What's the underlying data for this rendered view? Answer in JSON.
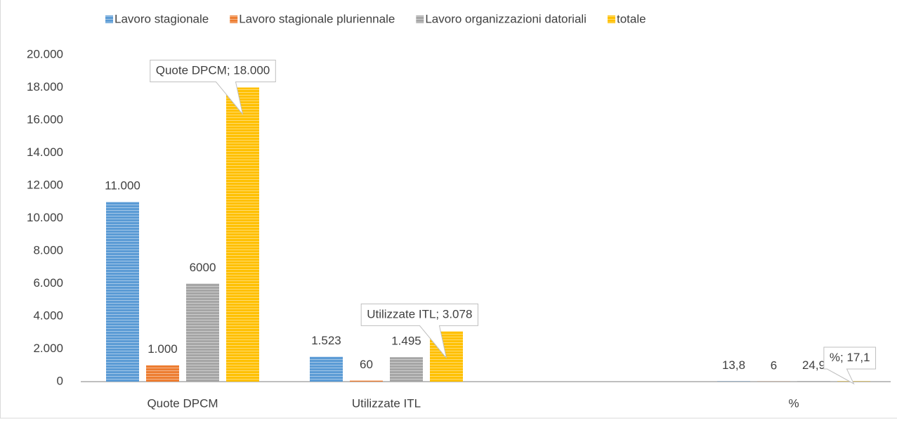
{
  "chart_data": {
    "type": "bar",
    "categories": [
      "Quote DPCM",
      "Utilizzate ITL",
      null,
      "%"
    ],
    "series": [
      {
        "name": "Lavoro stagionale",
        "color": "#5b9bd5",
        "values": [
          11000,
          1523,
          null,
          13.8
        ],
        "value_labels": [
          "11.000",
          "1.523",
          null,
          "13,8"
        ]
      },
      {
        "name": "Lavoro stagionale pluriennale",
        "color": "#ed7d31",
        "values": [
          1000,
          60,
          null,
          6
        ],
        "value_labels": [
          "1.000",
          "60",
          null,
          "6"
        ]
      },
      {
        "name": "Lavoro organizzazioni datoriali",
        "color": "#a5a5a5",
        "values": [
          6000,
          1495,
          null,
          24.9
        ],
        "value_labels": [
          "6000",
          "1.495",
          null,
          "24,9"
        ]
      },
      {
        "name": "totale",
        "color": "#ffc000",
        "values": [
          18000,
          3078,
          null,
          17.1
        ],
        "value_labels": [
          "Quote DPCM; 18.000",
          "Utilizzate ITL; 3.078",
          null,
          "%; 17,1"
        ],
        "callout": true
      }
    ],
    "ylim": [
      0,
      20000
    ],
    "yticks": [
      0,
      {
        "value": 2000,
        "label": "2.000"
      },
      {
        "value": 4000,
        "label": "4.000"
      },
      {
        "value": 6000,
        "label": "6.000"
      },
      {
        "value": 8000,
        "label": "8.000"
      },
      {
        "value": 10000,
        "label": "10.000"
      },
      {
        "value": 12000,
        "label": "12.000"
      },
      {
        "value": 14000,
        "label": "14.000"
      },
      {
        "value": 16000,
        "label": "16.000"
      },
      {
        "value": 18000,
        "label": "18.000"
      },
      {
        "value": 20000,
        "label": "20.000"
      }
    ],
    "grid": false,
    "legend": "top"
  }
}
